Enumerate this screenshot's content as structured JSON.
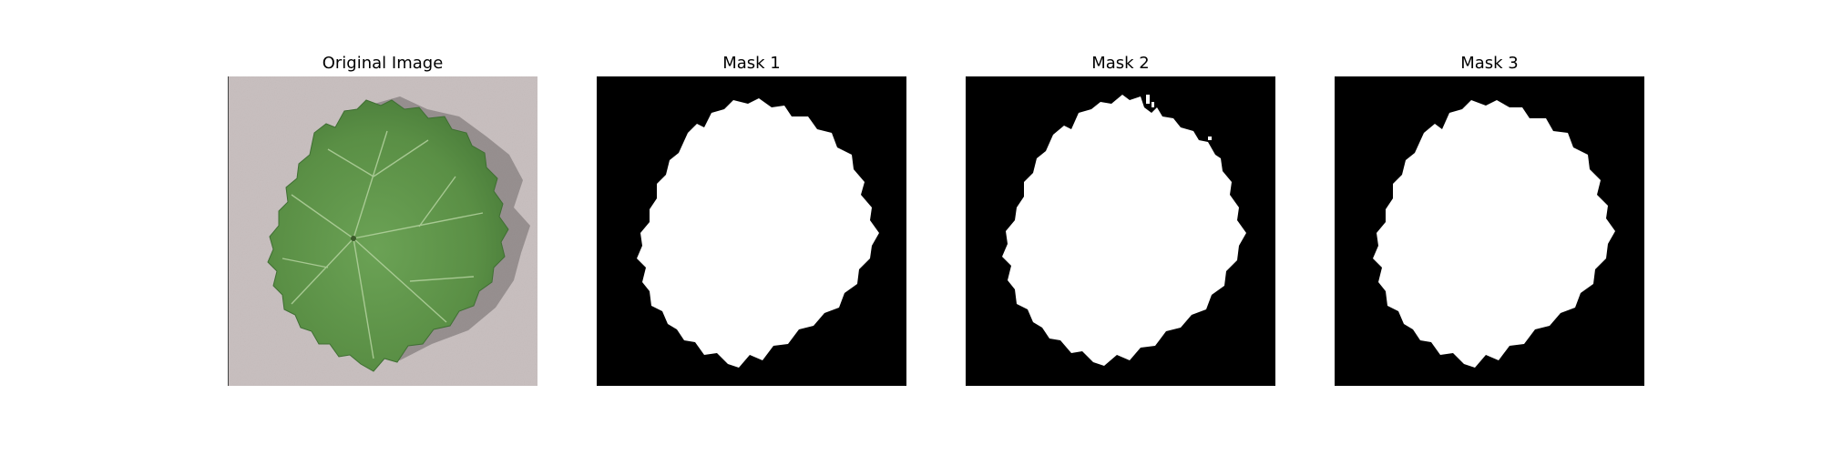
{
  "panels": [
    {
      "title": "Original Image"
    },
    {
      "title": "Mask 1"
    },
    {
      "title": "Mask 2"
    },
    {
      "title": "Mask 3"
    }
  ],
  "colors": {
    "background": "#c7bdbd",
    "leaf": "#5a8f45",
    "leaf_dark": "#3f6f33",
    "vein": "#b9d6a4",
    "mask_foreground": "#ffffff",
    "mask_background": "#000000"
  }
}
